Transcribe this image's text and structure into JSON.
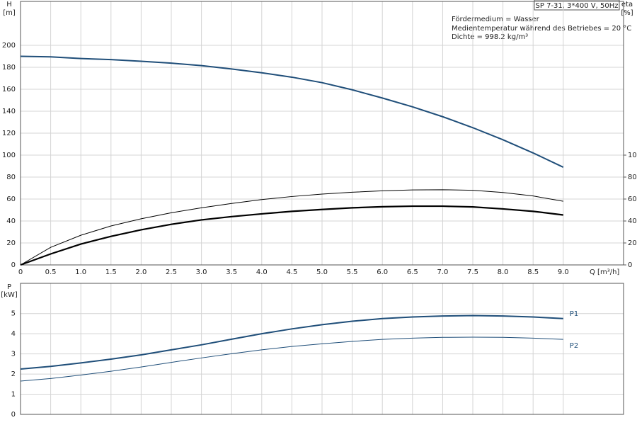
{
  "chart_data": [
    {
      "type": "line",
      "title": "SP 7-31, 3*400 V, 50Hz",
      "annotations": [
        "Fördermedium = Wasser",
        "Medientemperatur während des Betriebes = 20 °C",
        "Dichte = 998.2 kg/m³"
      ],
      "ylabel": "H",
      "ylabel_unit": "[m]",
      "y2label": "eta",
      "y2label_unit": "[%]",
      "xlabel": "Q [m³/h]",
      "x": [
        0,
        0.5,
        1,
        1.5,
        2,
        2.5,
        3,
        3.5,
        4,
        4.5,
        5,
        5.5,
        6,
        6.5,
        7,
        7.5,
        8,
        8.5,
        9
      ],
      "xlim": [
        0,
        10
      ],
      "xticks": [
        0,
        0.5,
        {
          "value": 1,
          "label": "1.0"
        },
        1.5,
        {
          "value": 2,
          "label": "2.0"
        },
        2.5,
        {
          "value": 3,
          "label": "3.0"
        },
        3.5,
        {
          "value": 4,
          "label": "4.0"
        },
        4.5,
        {
          "value": 5,
          "label": "5.0"
        },
        5.5,
        {
          "value": 6,
          "label": "6.0"
        },
        6.5,
        {
          "value": 7,
          "label": "7.0"
        },
        7.5,
        {
          "value": 8,
          "label": "8.0"
        },
        8.5,
        {
          "value": 9,
          "label": "9.0"
        }
      ],
      "ylim": [
        0,
        240
      ],
      "yticks": [
        0,
        20,
        40,
        60,
        80,
        100,
        120,
        140,
        160,
        180,
        200
      ],
      "y2lim": [
        0,
        240
      ],
      "y2ticks": [
        0,
        20,
        40,
        60,
        80,
        100
      ],
      "grid": true,
      "series": [
        {
          "color": "#1f4e79",
          "linewidth": 2,
          "values": [
            190,
            189.5,
            188,
            187,
            185.5,
            183.8,
            181.5,
            178.5,
            175,
            171,
            166,
            159.5,
            152,
            144,
            135,
            125,
            114,
            102,
            89
          ]
        },
        {
          "color": "#000000",
          "linewidth": 1,
          "axis": "y2",
          "values": [
            0,
            16,
            27,
            35.5,
            42,
            47.5,
            52,
            56,
            59.5,
            62.3,
            64.5,
            66.2,
            67.5,
            68.3,
            68.5,
            68,
            66,
            62.8,
            58
          ]
        },
        {
          "color": "#000000",
          "linewidth": 2.2,
          "axis": "y2",
          "values": [
            0,
            10,
            19,
            26,
            32,
            37,
            41,
            44,
            46.5,
            48.8,
            50.5,
            52,
            53,
            53.5,
            53.5,
            52.8,
            51,
            48.8,
            45.5
          ]
        }
      ]
    },
    {
      "type": "line",
      "ylabel": "P",
      "ylabel_unit": "[kW]",
      "x": [
        0,
        0.5,
        1,
        1.5,
        2,
        2.5,
        3,
        3.5,
        4,
        4.5,
        5,
        5.5,
        6,
        6.5,
        7,
        7.5,
        8,
        8.5,
        9
      ],
      "ylim": [
        0,
        6.5
      ],
      "yticks": [
        0,
        1,
        2,
        3,
        4,
        5
      ],
      "grid": true,
      "series": [
        {
          "name": "P1",
          "color": "#1f4e79",
          "linewidth": 2,
          "values": [
            2.25,
            2.38,
            2.55,
            2.74,
            2.95,
            3.2,
            3.45,
            3.73,
            4.0,
            4.24,
            4.45,
            4.62,
            4.75,
            4.83,
            4.88,
            4.9,
            4.88,
            4.83,
            4.75
          ]
        },
        {
          "name": "P2",
          "color": "#1f4e79",
          "linewidth": 1,
          "values": [
            1.65,
            1.78,
            1.95,
            2.14,
            2.35,
            2.58,
            2.8,
            3.01,
            3.2,
            3.37,
            3.5,
            3.62,
            3.72,
            3.78,
            3.82,
            3.83,
            3.82,
            3.78,
            3.72
          ]
        }
      ]
    }
  ]
}
